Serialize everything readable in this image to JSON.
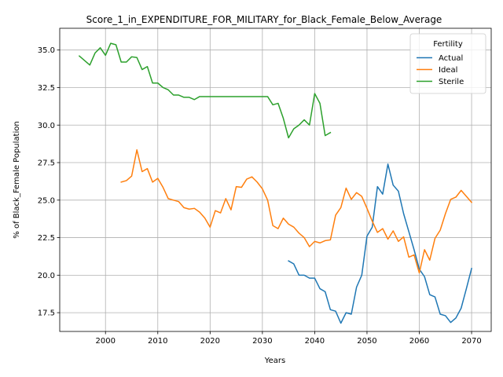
{
  "chart_data": {
    "type": "line",
    "title": "Score_1_in_EXPENDITURE_FOR_MILITARY_for_Black_Female_Below_Average",
    "xlabel": "Years",
    "ylabel": "% of Black_Female Population",
    "xlim": [
      1991.25,
      2073.75
    ],
    "ylim": [
      16.25,
      36.45
    ],
    "x_ticks": [
      2000,
      2010,
      2020,
      2030,
      2040,
      2050,
      2060,
      2070
    ],
    "y_ticks": [
      17.5,
      20.0,
      22.5,
      25.0,
      27.5,
      30.0,
      32.5,
      35.0
    ],
    "x_tick_labels": [
      "2000",
      "2010",
      "2020",
      "2030",
      "2040",
      "2050",
      "2060",
      "2070"
    ],
    "y_tick_labels": [
      "17.5",
      "20.0",
      "22.5",
      "25.0",
      "27.5",
      "30.0",
      "32.5",
      "35.0"
    ],
    "grid": true,
    "legend": {
      "title": "Fertility",
      "placement": "top-right"
    },
    "series": [
      {
        "name": "Actual",
        "color": "#1f77b4",
        "x": [
          2035,
          2036,
          2037,
          2038,
          2039,
          2040,
          2041,
          2042,
          2043,
          2044,
          2045,
          2046,
          2047,
          2048,
          2049,
          2050,
          2051,
          2052,
          2053,
          2054,
          2055,
          2056,
          2057,
          2058,
          2059,
          2060,
          2061,
          2062,
          2063,
          2064,
          2065,
          2066,
          2067,
          2068,
          2069,
          2070
        ],
        "y": [
          20.95,
          20.75,
          20.0,
          20.0,
          19.8,
          19.8,
          19.1,
          18.9,
          17.7,
          17.6,
          16.8,
          17.5,
          17.4,
          19.2,
          20.0,
          22.6,
          23.2,
          25.9,
          25.4,
          27.4,
          26.0,
          25.6,
          24.1,
          22.9,
          21.7,
          20.4,
          19.9,
          18.7,
          18.55,
          17.4,
          17.3,
          16.85,
          17.15,
          17.8,
          19.1,
          20.45
        ]
      },
      {
        "name": "Ideal",
        "color": "#ff7f0e",
        "x": [
          2003,
          2004,
          2005,
          2006,
          2007,
          2008,
          2009,
          2010,
          2011,
          2012,
          2013,
          2014,
          2015,
          2016,
          2017,
          2018,
          2019,
          2020,
          2021,
          2022,
          2023,
          2024,
          2025,
          2026,
          2027,
          2028,
          2029,
          2030,
          2031,
          2032,
          2033,
          2034,
          2035,
          2036,
          2037,
          2038,
          2039,
          2040,
          2041,
          2042,
          2043,
          2044,
          2045,
          2046,
          2047,
          2048,
          2049,
          2050,
          2051,
          2052,
          2053,
          2054,
          2055,
          2056,
          2057,
          2058,
          2059,
          2060,
          2061,
          2062,
          2063,
          2064,
          2065,
          2066,
          2067,
          2068,
          2069,
          2070
        ],
        "y": [
          26.2,
          26.3,
          26.6,
          28.35,
          26.9,
          27.1,
          26.2,
          26.45,
          25.85,
          25.1,
          25.0,
          24.9,
          24.5,
          24.4,
          24.45,
          24.2,
          23.8,
          23.2,
          24.3,
          24.15,
          25.1,
          24.35,
          25.9,
          25.85,
          26.4,
          26.55,
          26.2,
          25.75,
          25.0,
          23.3,
          23.1,
          23.8,
          23.4,
          23.2,
          22.8,
          22.5,
          21.9,
          22.25,
          22.15,
          22.3,
          22.35,
          24.0,
          24.5,
          25.8,
          25.05,
          25.5,
          25.25,
          24.45,
          23.6,
          22.85,
          23.1,
          22.4,
          22.95,
          22.25,
          22.55,
          21.2,
          21.35,
          20.15,
          21.7,
          21.0,
          22.45,
          23.0,
          24.1,
          25.05,
          25.2,
          25.65,
          25.25,
          24.85
        ]
      },
      {
        "name": "Sterile",
        "color": "#2ca02c",
        "x": [
          1995,
          1996,
          1997,
          1998,
          1999,
          2000,
          2001,
          2002,
          2003,
          2004,
          2005,
          2006,
          2007,
          2008,
          2009,
          2010,
          2011,
          2012,
          2013,
          2014,
          2015,
          2016,
          2017,
          2018,
          2019,
          2020,
          2021,
          2022,
          2023,
          2024,
          2025,
          2026,
          2027,
          2028,
          2029,
          2030,
          2031,
          2032,
          2033,
          2034,
          2035,
          2036,
          2037,
          2038,
          2039,
          2040,
          2041,
          2042,
          2043
        ],
        "y": [
          34.6,
          34.3,
          34.0,
          34.8,
          35.15,
          34.65,
          35.45,
          35.35,
          34.2,
          34.2,
          34.55,
          34.5,
          33.7,
          33.9,
          32.8,
          32.8,
          32.5,
          32.35,
          32.0,
          32.0,
          31.85,
          31.85,
          31.7,
          31.9,
          31.9,
          31.9,
          31.9,
          31.9,
          31.9,
          31.9,
          31.9,
          31.9,
          31.9,
          31.9,
          31.9,
          31.9,
          31.9,
          31.35,
          31.45,
          30.45,
          29.15,
          29.75,
          30.0,
          30.35,
          30.0,
          32.1,
          31.45,
          29.3,
          29.5
        ]
      }
    ]
  }
}
